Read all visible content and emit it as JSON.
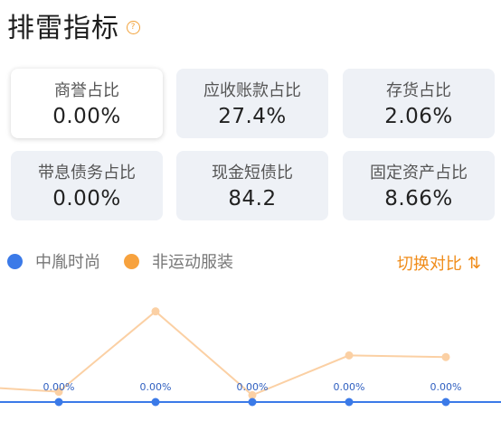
{
  "header": {
    "title": "排雷指标"
  },
  "metrics": [
    {
      "label": "商誉占比",
      "value": "0.00%",
      "active": true
    },
    {
      "label": "应收账款占比",
      "value": "27.4%"
    },
    {
      "label": "存货占比",
      "value": "2.06%"
    },
    {
      "label": "带息债务占比",
      "value": "0.00%"
    },
    {
      "label": "现金短债比",
      "value": "84.2"
    },
    {
      "label": "固定资产占比",
      "value": "8.66%"
    }
  ],
  "legend": [
    {
      "name": "中胤时尚",
      "color": "#3b7ae8"
    },
    {
      "name": "非运动服装",
      "color": "#f7a23e"
    }
  ],
  "switch_label": "切换对比",
  "chart_data": {
    "type": "line",
    "series": [
      {
        "name": "中胤时尚",
        "values": [
          0,
          0,
          0,
          0,
          0
        ],
        "labels": [
          "0.00%",
          "0.00%",
          "0.00%",
          "0.00%",
          "0.00%"
        ]
      },
      {
        "name": "非运动服装",
        "values": [
          1.0,
          10.5,
          0.6,
          5.3,
          5.1
        ]
      }
    ]
  }
}
